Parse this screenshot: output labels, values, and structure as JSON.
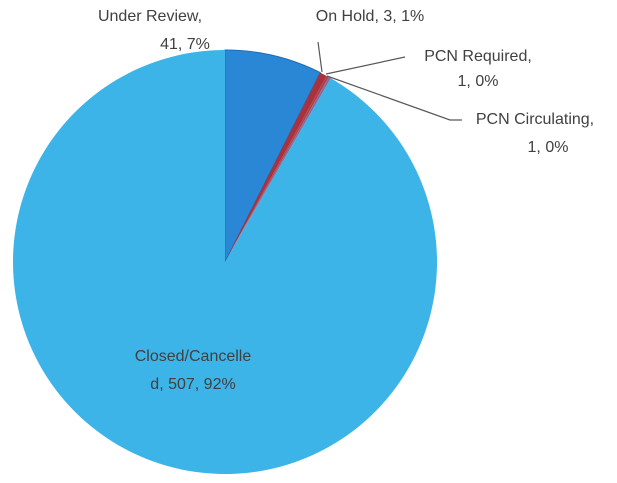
{
  "chart_data": {
    "type": "pie",
    "categories": [
      "Under Review",
      "On Hold",
      "PCN Required",
      "PCN Circulating",
      "Closed/Cancelled"
    ],
    "values": [
      41,
      3,
      1,
      1,
      507
    ],
    "percents": [
      7,
      1,
      0,
      0,
      92
    ],
    "labels": [
      [
        "Under Review,",
        "41, 7%"
      ],
      [
        "On Hold, 3, 1%"
      ],
      [
        "PCN Required,",
        "1, 0%"
      ],
      [
        "PCN Circulating,",
        "1, 0%"
      ],
      [
        "Closed/Cancelle",
        "d, 507, 92%"
      ]
    ],
    "colors": [
      "#2a87d6",
      "#a8323e",
      "#b0404a",
      "#8a6a9a",
      "#3cb4e8"
    ],
    "start_angle": 0,
    "direction": "clockwise"
  }
}
